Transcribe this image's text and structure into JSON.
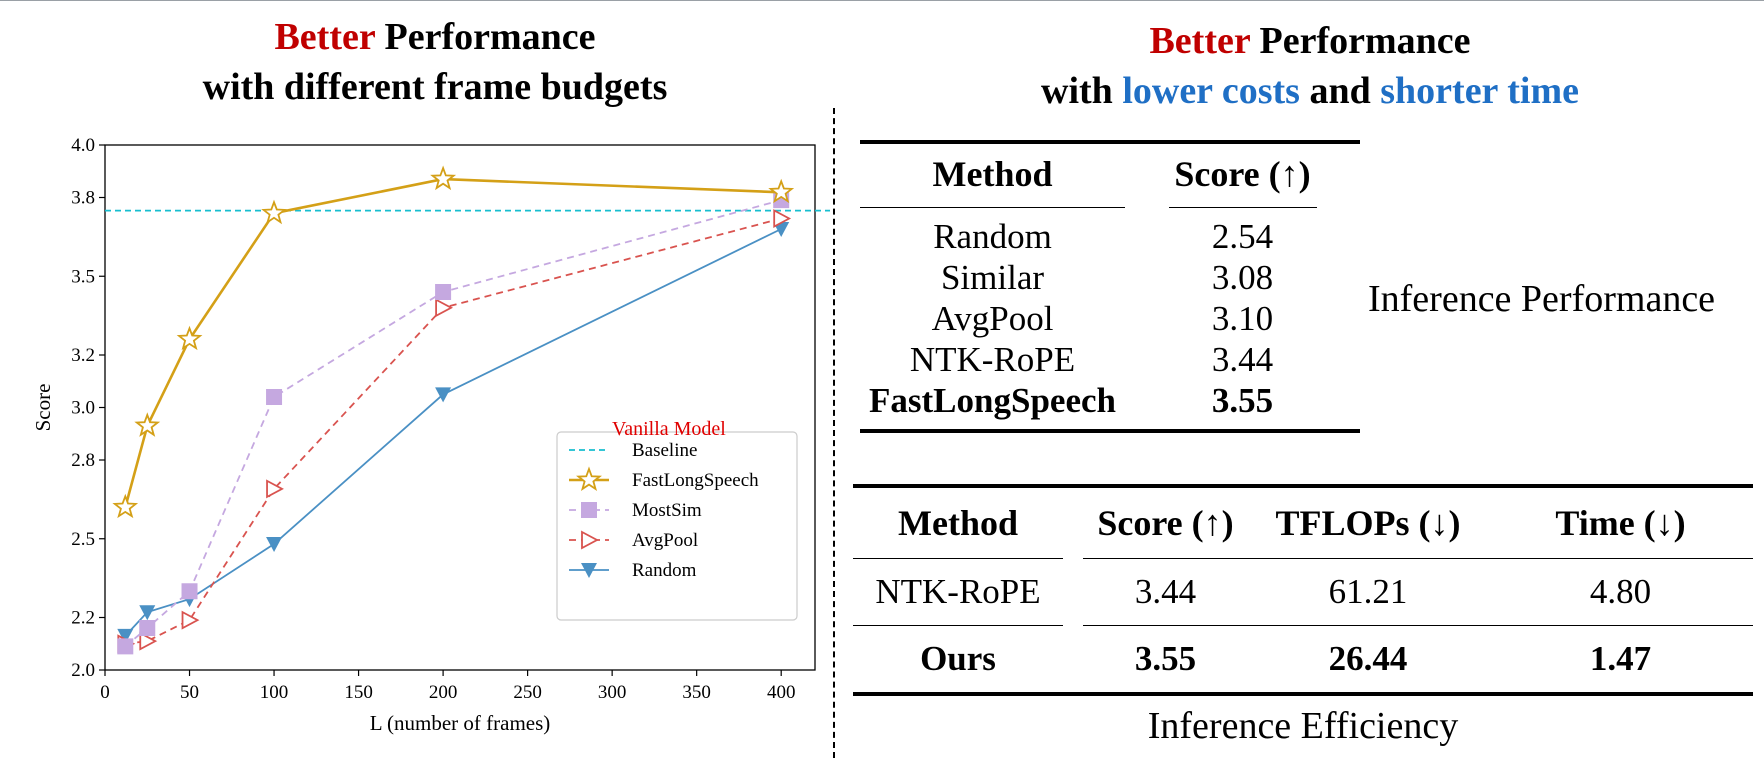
{
  "left_title": {
    "red": "Better",
    "black": " Performance",
    "line2": "with different frame budgets"
  },
  "right_title": {
    "red": "Better",
    "black": " Performance",
    "l2a": "with ",
    "l2b": "lower costs",
    "l2c": " and ",
    "l2d": "shorter time"
  },
  "colors": {
    "red": "#c00000",
    "blue": "#1f6fc5",
    "baseline": "#17becf",
    "fast": "#d4a017",
    "mostsim": "#c5a8e0",
    "avgpool": "#d9534f",
    "random": "#4a90c4"
  },
  "chart_data": {
    "type": "line",
    "xlabel": "L (number of frames)",
    "ylabel": "Score",
    "xlim": [
      0,
      420
    ],
    "ylim": [
      2.0,
      4.0
    ],
    "xticks": [
      0,
      50,
      100,
      150,
      200,
      250,
      300,
      350,
      400
    ],
    "yticks": [
      2.0,
      2.2,
      2.5,
      2.8,
      3.0,
      3.2,
      3.5,
      3.8,
      4.0
    ],
    "x": [
      12,
      25,
      50,
      100,
      200,
      400
    ],
    "baseline": {
      "name": "Baseline",
      "value": 3.75,
      "note": "Vanilla Model"
    },
    "series": [
      {
        "name": "FastLongSpeech",
        "values": [
          2.62,
          2.93,
          3.26,
          3.74,
          3.87,
          3.82
        ]
      },
      {
        "name": "MostSim",
        "values": [
          2.09,
          2.16,
          2.3,
          3.04,
          3.44,
          3.79
        ]
      },
      {
        "name": "AvgPool",
        "values": [
          2.1,
          2.11,
          2.19,
          2.69,
          3.38,
          3.72
        ]
      },
      {
        "name": "Random",
        "values": [
          2.13,
          2.22,
          2.27,
          2.48,
          3.05,
          3.68
        ]
      }
    ],
    "legend_position": "lower-right",
    "grid": false
  },
  "perf_table": {
    "headers": [
      "Method",
      "Score (↑)"
    ],
    "rows": [
      [
        "Random",
        "2.54"
      ],
      [
        "Similar",
        "3.08"
      ],
      [
        "AvgPool",
        "3.10"
      ],
      [
        "NTK-RoPE",
        "3.44"
      ],
      [
        "FastLongSpeech",
        "3.55"
      ]
    ],
    "label": "Inference Performance"
  },
  "eff_table": {
    "headers": [
      "Method",
      "Score (↑)",
      "TFLOPs (↓)",
      "Time (↓)"
    ],
    "rows": [
      [
        "NTK-RoPE",
        "3.44",
        "61.21",
        "4.80"
      ],
      [
        "Ours",
        "3.55",
        "26.44",
        "1.47"
      ]
    ],
    "label": "Inference Efficiency"
  }
}
